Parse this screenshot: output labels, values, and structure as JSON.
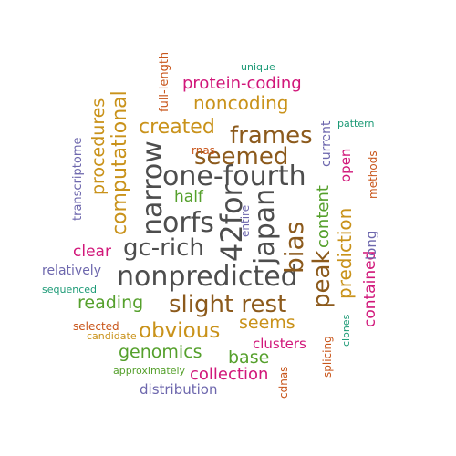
{
  "colors": {
    "dark_gray": "#4d4d4d",
    "brown": "#8c5a1c",
    "orange_brown": "#c9921a",
    "green": "#55a02c",
    "magenta": "#d1177a",
    "purple": "#6d67ad",
    "teal": "#1c9a76",
    "burnt_orange": "#c8551a"
  },
  "words": [
    {
      "text": "nonpredicted"
    },
    {
      "text": "one-fourth"
    },
    {
      "text": "42for"
    },
    {
      "text": "gc-rich"
    },
    {
      "text": "orfs"
    },
    {
      "text": "narrow"
    },
    {
      "text": "japan"
    },
    {
      "text": "bias"
    },
    {
      "text": "frames"
    },
    {
      "text": "seemed"
    },
    {
      "text": "slight rest"
    },
    {
      "text": "peak"
    },
    {
      "text": "obvious"
    },
    {
      "text": "computational"
    },
    {
      "text": "created"
    },
    {
      "text": "noncoding"
    },
    {
      "text": "protein-coding"
    },
    {
      "text": "procedures"
    },
    {
      "text": "prediction"
    },
    {
      "text": "content"
    },
    {
      "text": "reading"
    },
    {
      "text": "seems"
    },
    {
      "text": "genomics"
    },
    {
      "text": "base"
    },
    {
      "text": "collection"
    },
    {
      "text": "half"
    },
    {
      "text": "clear"
    },
    {
      "text": "clusters"
    },
    {
      "text": "contained"
    },
    {
      "text": "long"
    },
    {
      "text": "open"
    },
    {
      "text": "current"
    },
    {
      "text": "relatively"
    },
    {
      "text": "distribution"
    },
    {
      "text": "transcriptome"
    },
    {
      "text": "full-length"
    },
    {
      "text": "methods"
    },
    {
      "text": "splicing"
    },
    {
      "text": "cdnas"
    },
    {
      "text": "entire"
    },
    {
      "text": "rnas"
    },
    {
      "text": "sequenced"
    },
    {
      "text": "selected"
    },
    {
      "text": "candidate"
    },
    {
      "text": "approximately"
    },
    {
      "text": "clones"
    },
    {
      "text": "pattern"
    },
    {
      "text": "unique"
    }
  ]
}
